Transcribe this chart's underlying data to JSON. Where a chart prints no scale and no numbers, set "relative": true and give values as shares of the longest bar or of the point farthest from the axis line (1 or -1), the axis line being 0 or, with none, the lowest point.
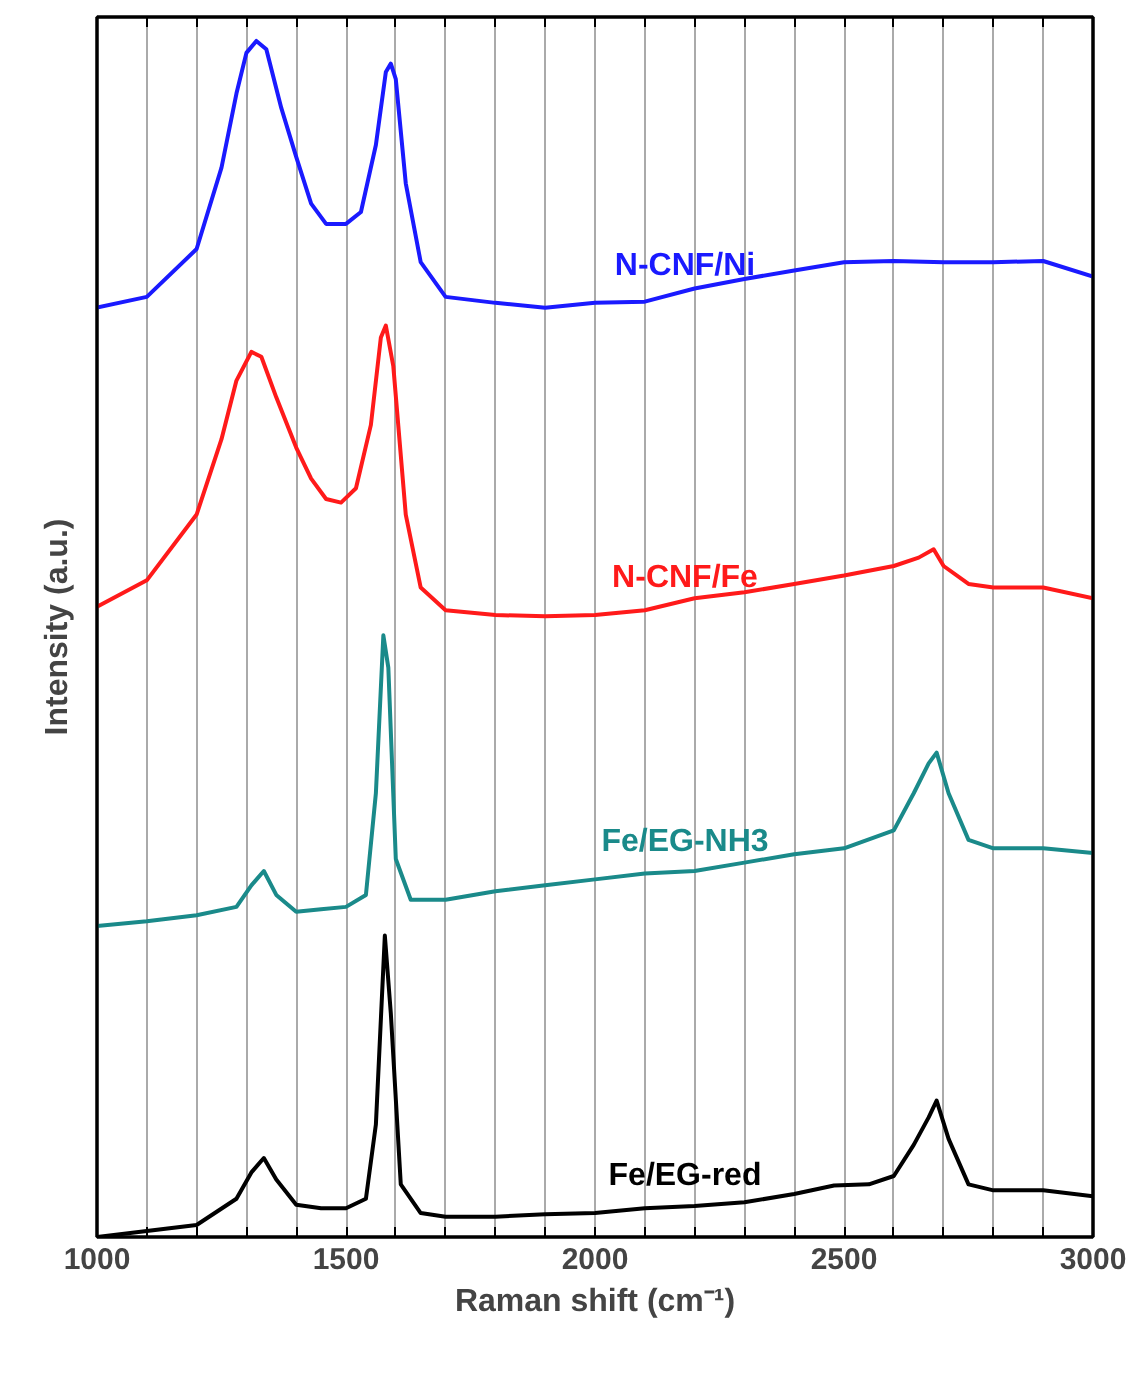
{
  "chart_data": {
    "type": "line",
    "relative": true,
    "xlabel": "Raman shift (cm⁻¹)",
    "ylabel": "Intensity (a.u.)",
    "xlim": [
      1000,
      3000
    ],
    "xticks": [
      1000,
      {
        "value": 1100,
        "label": null
      },
      {
        "value": 1200,
        "label": null
      },
      {
        "value": 1300,
        "label": null
      },
      {
        "value": 1400,
        "label": null
      },
      1500,
      {
        "value": 1600,
        "label": null
      },
      {
        "value": 1700,
        "label": null
      },
      {
        "value": 1800,
        "label": null
      },
      {
        "value": 1900,
        "label": null
      },
      2000,
      {
        "value": 2100,
        "label": null
      },
      {
        "value": 2200,
        "label": null
      },
      {
        "value": 2300,
        "label": null
      },
      {
        "value": 2400,
        "label": null
      },
      2500,
      {
        "value": 2600,
        "label": null
      },
      {
        "value": 2700,
        "label": null
      },
      {
        "value": 2800,
        "label": null
      },
      {
        "value": 2900,
        "label": null
      },
      3000
    ],
    "grid": "x",
    "marker": "none",
    "line_style": "solid",
    "series": [
      {
        "name": "N-CNF/Ni",
        "color": "#1a1aff",
        "x": [
          1000,
          1100,
          1200,
          1250,
          1280,
          1300,
          1320,
          1340,
          1370,
          1400,
          1430,
          1460,
          1500,
          1530,
          1560,
          1580,
          1590,
          1600,
          1620,
          1650,
          1700,
          1800,
          1900,
          2000,
          2100,
          2200,
          2300,
          2400,
          2500,
          2600,
          2700,
          2800,
          2900,
          3000
        ],
        "values": [
          0.777,
          0.786,
          0.826,
          0.894,
          0.956,
          0.99,
          1.0,
          0.993,
          0.944,
          0.903,
          0.864,
          0.847,
          0.847,
          0.857,
          0.913,
          0.974,
          0.981,
          0.968,
          0.881,
          0.815,
          0.786,
          0.781,
          0.777,
          0.781,
          0.782,
          0.793,
          0.801,
          0.808,
          0.815,
          0.816,
          0.815,
          0.815,
          0.816,
          0.803
        ]
      },
      {
        "name": "N-CNF/Fe",
        "color": "#ff1a1a",
        "x": [
          1000,
          1100,
          1200,
          1250,
          1280,
          1310,
          1330,
          1360,
          1400,
          1430,
          1460,
          1490,
          1520,
          1550,
          1570,
          1580,
          1595,
          1620,
          1650,
          1700,
          1800,
          1900,
          2000,
          2100,
          2200,
          2300,
          2400,
          2500,
          2600,
          2650,
          2680,
          2700,
          2750,
          2800,
          2900,
          3000
        ],
        "values": [
          0.527,
          0.549,
          0.604,
          0.667,
          0.716,
          0.74,
          0.736,
          0.702,
          0.66,
          0.634,
          0.617,
          0.614,
          0.626,
          0.679,
          0.752,
          0.762,
          0.728,
          0.604,
          0.543,
          0.524,
          0.52,
          0.519,
          0.52,
          0.524,
          0.534,
          0.539,
          0.546,
          0.553,
          0.561,
          0.568,
          0.575,
          0.561,
          0.546,
          0.543,
          0.543,
          0.534
        ]
      },
      {
        "name": "Fe/EG-NH3",
        "color": "#1a8a8a",
        "x": [
          1000,
          1100,
          1200,
          1280,
          1310,
          1335,
          1360,
          1400,
          1450,
          1500,
          1540,
          1560,
          1575,
          1585,
          1600,
          1630,
          1700,
          1800,
          1900,
          2000,
          2100,
          2200,
          2300,
          2400,
          2500,
          2600,
          2640,
          2670,
          2686,
          2710,
          2750,
          2800,
          2900,
          3000
        ],
        "values": [
          0.26,
          0.264,
          0.269,
          0.276,
          0.294,
          0.306,
          0.286,
          0.272,
          0.274,
          0.276,
          0.286,
          0.371,
          0.503,
          0.476,
          0.316,
          0.282,
          0.282,
          0.289,
          0.294,
          0.299,
          0.304,
          0.306,
          0.313,
          0.32,
          0.325,
          0.34,
          0.371,
          0.396,
          0.405,
          0.371,
          0.332,
          0.325,
          0.325,
          0.321
        ]
      },
      {
        "name": "Fe/EG-red",
        "color": "#000000",
        "x": [
          1000,
          1100,
          1200,
          1280,
          1310,
          1335,
          1360,
          1400,
          1450,
          1500,
          1540,
          1560,
          1578,
          1590,
          1610,
          1650,
          1700,
          1800,
          1900,
          2000,
          2100,
          2200,
          2300,
          2400,
          2480,
          2550,
          2600,
          2640,
          2670,
          2686,
          2710,
          2750,
          2800,
          2900,
          3000
        ],
        "values": [
          0.0,
          0.005,
          0.01,
          0.032,
          0.054,
          0.066,
          0.048,
          0.027,
          0.024,
          0.024,
          0.032,
          0.094,
          0.252,
          0.187,
          0.044,
          0.02,
          0.017,
          0.017,
          0.019,
          0.02,
          0.024,
          0.026,
          0.029,
          0.036,
          0.043,
          0.044,
          0.051,
          0.077,
          0.1,
          0.114,
          0.082,
          0.044,
          0.039,
          0.039,
          0.034
        ]
      }
    ]
  }
}
